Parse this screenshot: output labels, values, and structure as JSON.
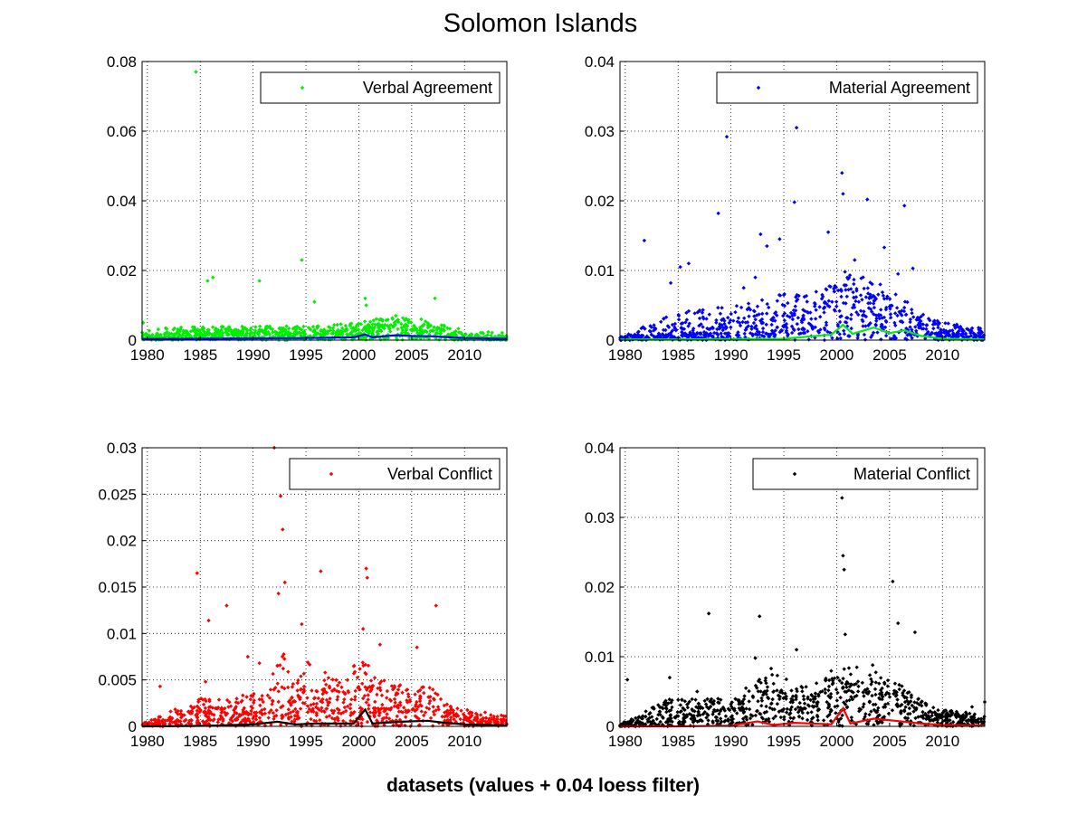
{
  "figure": {
    "title": "Solomon Islands",
    "xlabel": "datasets (values + 0.04 loess filter)"
  },
  "chart_data": [
    {
      "type": "scatter",
      "legend": "Verbal Agreement",
      "legend_position": "top-right",
      "grid": true,
      "xlim": [
        1979.5,
        2014
      ],
      "ylim": [
        0,
        0.08
      ],
      "xticks": [
        1980,
        1985,
        1990,
        1995,
        2000,
        2005,
        2010
      ],
      "yticks": [
        "0",
        "0.02",
        "0.04",
        "0.06",
        "0.08"
      ],
      "point_color": "#00ee00",
      "trend_color": "#0000ff",
      "outliers": [
        [
          1979.6,
          0.005
        ],
        [
          1984.6,
          0.077
        ],
        [
          1985.7,
          0.017
        ],
        [
          1986.2,
          0.018
        ],
        [
          1990.6,
          0.017
        ],
        [
          1994.6,
          0.023
        ],
        [
          1995.8,
          0.011
        ],
        [
          2000.6,
          0.012
        ],
        [
          2000.7,
          0.01
        ],
        [
          2007.2,
          0.012
        ],
        [
          2003.5,
          0.007
        ],
        [
          2005.9,
          0.006
        ]
      ],
      "trend": [
        [
          1979.5,
          0.0003
        ],
        [
          1985,
          0.0004
        ],
        [
          1990,
          0.0005
        ],
        [
          1995,
          0.0006
        ],
        [
          1999.5,
          0.0008
        ],
        [
          2000.6,
          0.0016
        ],
        [
          2001.3,
          0.0008
        ],
        [
          2003.5,
          0.0014
        ],
        [
          2005,
          0.0012
        ],
        [
          2007,
          0.0011
        ],
        [
          2010,
          0.0006
        ],
        [
          2014,
          0.0004
        ]
      ],
      "density": [
        [
          1979.5,
          0.0006,
          0.0015,
          0.003
        ],
        [
          1984.5,
          0.002,
          0.003,
          0.004
        ],
        [
          1990,
          0.002,
          0.003,
          0.004
        ],
        [
          1995,
          0.002,
          0.003,
          0.004
        ],
        [
          2000,
          0.003,
          0.004,
          0.005
        ],
        [
          2001.5,
          0.003,
          0.005,
          0.006
        ],
        [
          2003.5,
          0.004,
          0.006,
          0.007
        ],
        [
          2007,
          0.003,
          0.004,
          0.005
        ],
        [
          2010,
          0.001,
          0.002,
          0.003
        ],
        [
          2014,
          0.0006,
          0.0012,
          0.002
        ]
      ]
    },
    {
      "type": "scatter",
      "legend": "Material Agreement",
      "legend_position": "top-right",
      "grid": true,
      "xlim": [
        1979.5,
        2014
      ],
      "ylim": [
        0,
        0.04
      ],
      "xticks": [
        1980,
        1985,
        1990,
        1995,
        2000,
        2005,
        2010
      ],
      "yticks": [
        "0",
        "0.01",
        "0.02",
        "0.03",
        "0.04"
      ],
      "point_color": "#0000ff",
      "trend_color": "#00ee00",
      "outliers": [
        [
          1981.8,
          0.0143
        ],
        [
          1984.3,
          0.0082
        ],
        [
          1985.2,
          0.0105
        ],
        [
          1986.0,
          0.011
        ],
        [
          1988.8,
          0.0182
        ],
        [
          1989.6,
          0.0292
        ],
        [
          1992.8,
          0.0152
        ],
        [
          1994.6,
          0.0145
        ],
        [
          1996.0,
          0.0198
        ],
        [
          1996.2,
          0.0305
        ],
        [
          1999.2,
          0.0155
        ],
        [
          2000.5,
          0.024
        ],
        [
          2000.6,
          0.021
        ],
        [
          2002.9,
          0.0202
        ],
        [
          2004.5,
          0.0133
        ],
        [
          2006.4,
          0.0193
        ],
        [
          2007.2,
          0.0103
        ],
        [
          1993.4,
          0.0135
        ],
        [
          1992.3,
          0.009
        ],
        [
          1991.2,
          0.0075
        ],
        [
          2001.7,
          0.0115
        ],
        [
          2005.8,
          0.0095
        ]
      ],
      "trend": [
        [
          1979.5,
          0.0001
        ],
        [
          1985,
          0.0001
        ],
        [
          1990,
          0.00015
        ],
        [
          1995,
          0.0002
        ],
        [
          1999.5,
          0.0008
        ],
        [
          2000.6,
          0.0022
        ],
        [
          2001.5,
          0.0009
        ],
        [
          2003.5,
          0.0018
        ],
        [
          2005,
          0.001
        ],
        [
          2006.4,
          0.0014
        ],
        [
          2008,
          0.0006
        ],
        [
          2010,
          0.0002
        ],
        [
          2014,
          0.0001
        ]
      ],
      "density": [
        [
          1979.5,
          0.0002,
          0.0003,
          0.0005
        ],
        [
          1985,
          0.0008,
          0.0025,
          0.004
        ],
        [
          1990,
          0.0012,
          0.003,
          0.005
        ],
        [
          1993.5,
          0.0022,
          0.004,
          0.0065
        ],
        [
          1997,
          0.003,
          0.005,
          0.007
        ],
        [
          2000.5,
          0.006,
          0.008,
          0.01
        ],
        [
          2003,
          0.005,
          0.007,
          0.009
        ],
        [
          2005,
          0.004,
          0.006,
          0.008
        ],
        [
          2008,
          0.002,
          0.003,
          0.004
        ],
        [
          2010,
          0.001,
          0.0018,
          0.0025
        ],
        [
          2014,
          0.0006,
          0.0012,
          0.0018
        ]
      ]
    },
    {
      "type": "scatter",
      "legend": "Verbal Conflict",
      "legend_position": "top-right",
      "grid": true,
      "xlim": [
        1979.5,
        2014
      ],
      "ylim": [
        0,
        0.03
      ],
      "xticks": [
        1980,
        1985,
        1990,
        1995,
        2000,
        2005,
        2010
      ],
      "yticks": [
        "0",
        "0.005",
        "0.01",
        "0.015",
        "0.02",
        "0.025",
        "0.03"
      ],
      "point_color": "#ff0000",
      "trend_color": "#000000",
      "outliers": [
        [
          1981.2,
          0.0043
        ],
        [
          1984.7,
          0.0165
        ],
        [
          1985.8,
          0.0114
        ],
        [
          1987.5,
          0.013
        ],
        [
          1992.0,
          0.03
        ],
        [
          1992.6,
          0.0248
        ],
        [
          1992.8,
          0.0212
        ],
        [
          1993.0,
          0.0155
        ],
        [
          1992.4,
          0.0143
        ],
        [
          1994.6,
          0.011
        ],
        [
          1996.4,
          0.0167
        ],
        [
          2000.7,
          0.017
        ],
        [
          2000.8,
          0.016
        ],
        [
          2007.3,
          0.013
        ],
        [
          2000.4,
          0.0105
        ],
        [
          2002.0,
          0.0088
        ],
        [
          2005.5,
          0.0085
        ],
        [
          1989.5,
          0.0075
        ],
        [
          1990.6,
          0.0068
        ],
        [
          1985.5,
          0.0048
        ]
      ],
      "trend": [
        [
          1979.5,
          0.0
        ],
        [
          1985,
          5e-05
        ],
        [
          1990,
          0.0002
        ],
        [
          1992.3,
          0.0005
        ],
        [
          1994,
          0.0002
        ],
        [
          1996,
          0.0003
        ],
        [
          1999.5,
          0.0003
        ],
        [
          2000.6,
          0.0018
        ],
        [
          2001.3,
          0.0003
        ],
        [
          2004,
          0.0005
        ],
        [
          2006.5,
          0.0006
        ],
        [
          2008,
          0.0004
        ],
        [
          2010,
          0.0002
        ],
        [
          2014,
          0.0001
        ]
      ],
      "density": [
        [
          1979.5,
          0.0001,
          0.0002,
          0.0003
        ],
        [
          1985,
          0.0012,
          0.002,
          0.003
        ],
        [
          1990,
          0.0015,
          0.0025,
          0.0035
        ],
        [
          1993,
          0.003,
          0.005,
          0.008
        ],
        [
          1997,
          0.002,
          0.004,
          0.006
        ],
        [
          2000.5,
          0.003,
          0.005,
          0.007
        ],
        [
          2003,
          0.002,
          0.0035,
          0.0045
        ],
        [
          2006.5,
          0.002,
          0.0035,
          0.0045
        ],
        [
          2009,
          0.001,
          0.0015,
          0.002
        ],
        [
          2014,
          0.0004,
          0.0008,
          0.0012
        ]
      ]
    },
    {
      "type": "scatter",
      "legend": "Material Conflict",
      "legend_position": "top-right",
      "grid": true,
      "xlim": [
        1979.5,
        2014
      ],
      "ylim": [
        0,
        0.04
      ],
      "xticks": [
        1980,
        1985,
        1990,
        1995,
        2000,
        2005,
        2010
      ],
      "yticks": [
        "0",
        "0.01",
        "0.02",
        "0.03",
        "0.04"
      ],
      "point_color": "#000000",
      "trend_color": "#ff0000",
      "outliers": [
        [
          1980.2,
          0.0067
        ],
        [
          1984.2,
          0.007
        ],
        [
          1986.8,
          0.005
        ],
        [
          1987.9,
          0.0162
        ],
        [
          1992.7,
          0.0158
        ],
        [
          1993.8,
          0.0083
        ],
        [
          1996.2,
          0.011
        ],
        [
          2000.5,
          0.0328
        ],
        [
          2000.6,
          0.0245
        ],
        [
          2000.7,
          0.0225
        ],
        [
          2005.3,
          0.0208
        ],
        [
          2005.8,
          0.0148
        ],
        [
          2007.4,
          0.0135
        ],
        [
          2000.8,
          0.0132
        ],
        [
          2003.4,
          0.0088
        ],
        [
          1992.3,
          0.0098
        ],
        [
          2014.0,
          0.0035
        ],
        [
          2012.8,
          0.0028
        ]
      ],
      "trend": [
        [
          1979.5,
          0.0
        ],
        [
          1985,
          0.0
        ],
        [
          1990,
          0.0001
        ],
        [
          1992.5,
          0.0007
        ],
        [
          1994,
          0.0002
        ],
        [
          1996,
          0.0005
        ],
        [
          1999.5,
          0.0003
        ],
        [
          2000.6,
          0.0026
        ],
        [
          2001.3,
          0.0004
        ],
        [
          2003.5,
          0.0011
        ],
        [
          2005.5,
          0.0008
        ],
        [
          2008,
          0.0004
        ],
        [
          2010,
          0.0002
        ],
        [
          2014,
          0.0001
        ]
      ],
      "density": [
        [
          1979.5,
          0.0001,
          0.0002,
          0.0003
        ],
        [
          1984,
          0.0015,
          0.003,
          0.004
        ],
        [
          1990,
          0.002,
          0.003,
          0.004
        ],
        [
          1993,
          0.004,
          0.006,
          0.008
        ],
        [
          1997,
          0.003,
          0.004,
          0.006
        ],
        [
          2000.5,
          0.005,
          0.007,
          0.009
        ],
        [
          2003.5,
          0.004,
          0.006,
          0.008
        ],
        [
          2006,
          0.003,
          0.005,
          0.006
        ],
        [
          2009,
          0.0015,
          0.002,
          0.003
        ],
        [
          2014,
          0.0006,
          0.001,
          0.0015
        ]
      ]
    }
  ]
}
